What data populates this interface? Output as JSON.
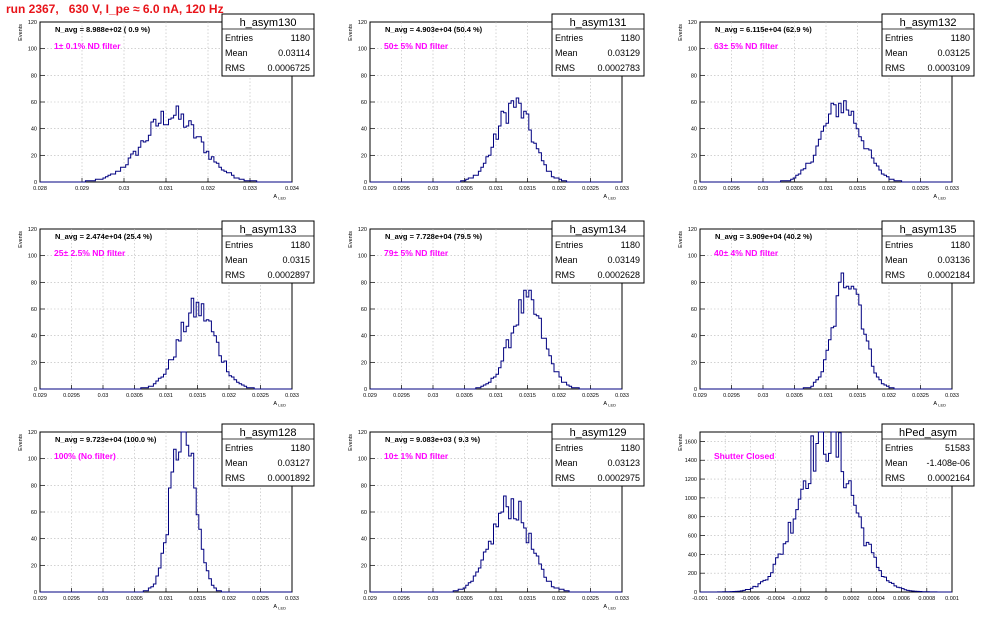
{
  "page_title": "run 2367,   630 V, I_pe ≈ 6.0 nA, 120 Hz",
  "chart_data": [
    {
      "type": "histogram",
      "name": "h_asym130",
      "ylabel": "Events",
      "xlabel": "A_LED",
      "n_avg": "N_avg = 8.988e+02 ( 0.9 %)",
      "filter": "1± 0.1% ND filter",
      "stats": {
        "Entries": "1180",
        "Mean": "0.03114",
        "RMS": "0.0006725"
      },
      "xlim": [
        0.028,
        0.034
      ],
      "ylim": [
        0,
        120
      ],
      "xticks": [
        "0.028",
        "0.029",
        "0.03",
        "0.031",
        "0.032",
        "0.033",
        "0.034"
      ],
      "yticks": [
        "0",
        "20",
        "40",
        "60",
        "80",
        "100",
        "120"
      ],
      "peak_mean": 0.03114,
      "peak_sigma": 0.0006725,
      "peak_height": 50,
      "n_bins": 100
    },
    {
      "type": "histogram",
      "name": "h_asym131",
      "ylabel": "Events",
      "xlabel": "A_LED",
      "n_avg": "N_avg = 4.903e+04 (50.4 %)",
      "filter": "50± 5% ND filter",
      "stats": {
        "Entries": "1180",
        "Mean": "0.03129",
        "RMS": "0.0002783"
      },
      "xlim": [
        0.029,
        0.033
      ],
      "ylim": [
        0,
        120
      ],
      "xticks": [
        "0.029",
        "0.0295",
        "0.03",
        "0.0305",
        "0.031",
        "0.0315",
        "0.032",
        "0.0325",
        "0.033"
      ],
      "yticks": [
        "0",
        "20",
        "40",
        "60",
        "80",
        "100",
        "120"
      ],
      "peak_mean": 0.03129,
      "peak_sigma": 0.0002783,
      "peak_height": 58,
      "n_bins": 100
    },
    {
      "type": "histogram",
      "name": "h_asym132",
      "ylabel": "Events",
      "xlabel": "A_LED",
      "n_avg": "N_avg = 6.115e+04 (62.9 %)",
      "filter": "63± 5% ND filter",
      "stats": {
        "Entries": "1180",
        "Mean": "0.03125",
        "RMS": "0.0003109"
      },
      "xlim": [
        0.029,
        0.033
      ],
      "ylim": [
        0,
        120
      ],
      "xticks": [
        "0.029",
        "0.0295",
        "0.03",
        "0.0305",
        "0.031",
        "0.0315",
        "0.032",
        "0.0325",
        "0.033"
      ],
      "yticks": [
        "0",
        "20",
        "40",
        "60",
        "80",
        "100",
        "120"
      ],
      "peak_mean": 0.03125,
      "peak_sigma": 0.0003109,
      "peak_height": 58,
      "n_bins": 100
    },
    {
      "type": "histogram",
      "name": "h_asym133",
      "ylabel": "Events",
      "xlabel": "A_LED",
      "n_avg": "N_avg = 2.474e+04 (25.4 %)",
      "filter": "25± 2.5% ND filter",
      "stats": {
        "Entries": "1180",
        "Mean": "0.0315",
        "RMS": "0.0002897"
      },
      "xlim": [
        0.029,
        0.033
      ],
      "ylim": [
        0,
        120
      ],
      "xticks": [
        "0.029",
        "0.0295",
        "0.03",
        "0.0305",
        "0.031",
        "0.0315",
        "0.032",
        "0.0325",
        "0.033"
      ],
      "yticks": [
        "0",
        "20",
        "40",
        "60",
        "80",
        "100",
        "120"
      ],
      "peak_mean": 0.0315,
      "peak_sigma": 0.0002897,
      "peak_height": 60,
      "n_bins": 100
    },
    {
      "type": "histogram",
      "name": "h_asym134",
      "ylabel": "Events",
      "xlabel": "A_LED",
      "n_avg": "N_avg = 7.728e+04 (79.5 %)",
      "filter": "79± 5% ND filter",
      "stats": {
        "Entries": "1180",
        "Mean": "0.03149",
        "RMS": "0.0002628"
      },
      "xlim": [
        0.029,
        0.033
      ],
      "ylim": [
        0,
        120
      ],
      "xticks": [
        "0.029",
        "0.0295",
        "0.03",
        "0.0305",
        "0.031",
        "0.0315",
        "0.032",
        "0.0325",
        "0.033"
      ],
      "yticks": [
        "0",
        "20",
        "40",
        "60",
        "80",
        "100",
        "120"
      ],
      "peak_mean": 0.03149,
      "peak_sigma": 0.0002628,
      "peak_height": 64,
      "n_bins": 100
    },
    {
      "type": "histogram",
      "name": "h_asym135",
      "ylabel": "Events",
      "xlabel": "A_LED",
      "n_avg": "N_avg = 3.909e+04 (40.2 %)",
      "filter": "40± 4% ND filter",
      "stats": {
        "Entries": "1180",
        "Mean": "0.03136",
        "RMS": "0.0002184"
      },
      "xlim": [
        0.029,
        0.033
      ],
      "ylim": [
        0,
        120
      ],
      "xticks": [
        "0.029",
        "0.0295",
        "0.03",
        "0.0305",
        "0.031",
        "0.0315",
        "0.032",
        "0.0325",
        "0.033"
      ],
      "yticks": [
        "0",
        "20",
        "40",
        "60",
        "80",
        "100",
        "120"
      ],
      "peak_mean": 0.03136,
      "peak_sigma": 0.0002184,
      "peak_height": 88,
      "n_bins": 100
    },
    {
      "type": "histogram",
      "name": "h_asym128",
      "ylabel": "Events",
      "xlabel": "A_LED",
      "n_avg": "N_avg = 9.723e+04 (100.0 %)",
      "filter": "100% (No filter)",
      "stats": {
        "Entries": "1180",
        "Mean": "0.03127",
        "RMS": "0.0001892"
      },
      "xlim": [
        0.029,
        0.033
      ],
      "ylim": [
        0,
        120
      ],
      "xticks": [
        "0.029",
        "0.0295",
        "0.03",
        "0.0305",
        "0.031",
        "0.0315",
        "0.032",
        "0.0325",
        "0.033"
      ],
      "yticks": [
        "0",
        "20",
        "40",
        "60",
        "80",
        "100",
        "120"
      ],
      "peak_mean": 0.03127,
      "peak_sigma": 0.0001892,
      "peak_height": 122,
      "n_bins": 100
    },
    {
      "type": "histogram",
      "name": "h_asym129",
      "ylabel": "Events",
      "xlabel": "A_LED",
      "n_avg": "N_avg = 9.083e+03 ( 9.3 %)",
      "filter": "10± 1% ND filter",
      "stats": {
        "Entries": "1180",
        "Mean": "0.03123",
        "RMS": "0.0002975"
      },
      "xlim": [
        0.029,
        0.033
      ],
      "ylim": [
        0,
        120
      ],
      "xticks": [
        "0.029",
        "0.0295",
        "0.03",
        "0.0305",
        "0.031",
        "0.0315",
        "0.032",
        "0.0325",
        "0.033"
      ],
      "yticks": [
        "0",
        "20",
        "40",
        "60",
        "80",
        "100",
        "120"
      ],
      "peak_mean": 0.03123,
      "peak_sigma": 0.0002975,
      "peak_height": 66,
      "n_bins": 100
    },
    {
      "type": "histogram",
      "name": "hPed_asym",
      "ylabel": "Events",
      "xlabel": "",
      "n_avg": "",
      "filter": "Shutter Closed",
      "stats": {
        "Entries": "51583",
        "Mean": "-1.408e-06",
        "RMS": "0.0002164"
      },
      "xlim": [
        -0.001,
        0.001
      ],
      "ylim": [
        0,
        1700
      ],
      "xticks": [
        "-0.001",
        "-0.0008",
        "-0.0006",
        "-0.0004",
        "-0.0002",
        "0",
        "0.0002",
        "0.0004",
        "0.0006",
        "0.0008",
        "0.001"
      ],
      "yticks": [
        "0",
        "200",
        "400",
        "600",
        "800",
        "1000",
        "1200",
        "1400",
        "1600"
      ],
      "peak_mean": 0.0,
      "peak_sigma": 0.0002164,
      "peak_height": 1650,
      "n_bins": 100
    }
  ]
}
